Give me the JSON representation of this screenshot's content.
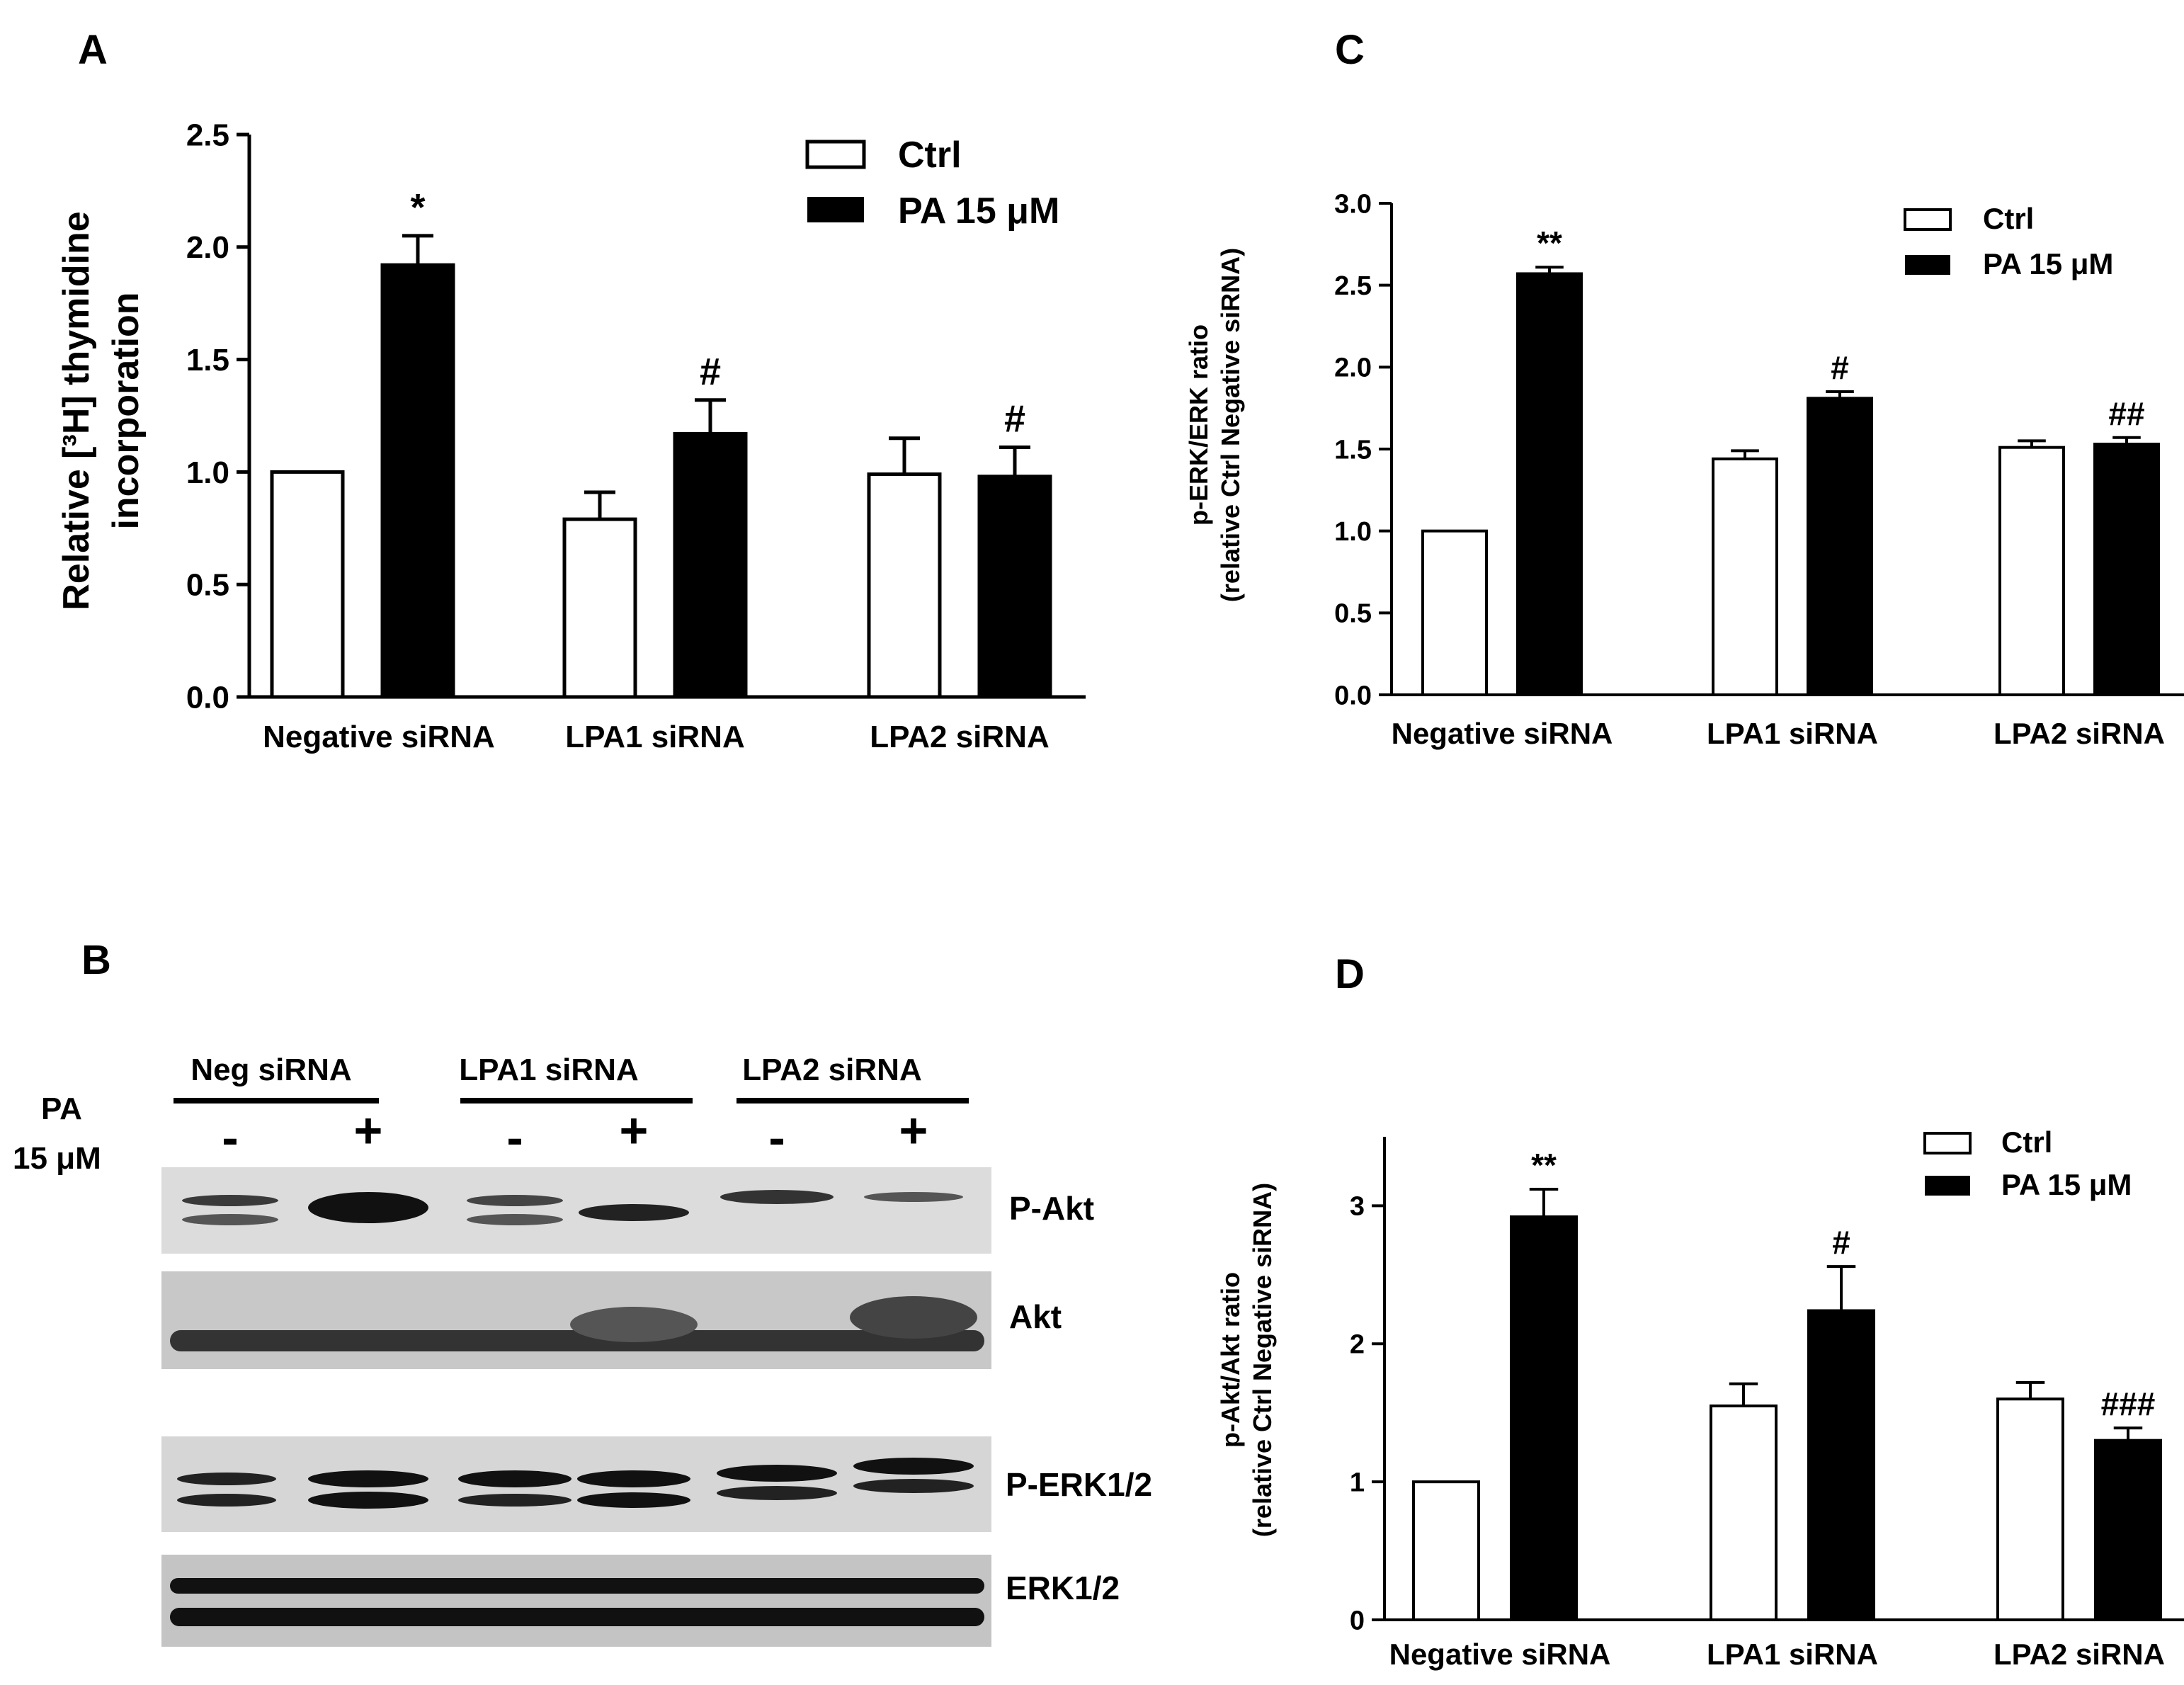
{
  "panels": {
    "A": {
      "letter": "A",
      "ylabel_line1": "Relative [³H] thymidine",
      "ylabel_line2": "incorporation",
      "legend": [
        "Ctrl",
        "PA 15 μM"
      ]
    },
    "B": {
      "letter": "B",
      "pa_label_line1": "PA",
      "pa_label_line2": "15 μM",
      "groups": [
        "Neg siRNA",
        "LPA1 siRNA",
        "LPA2  siRNA"
      ],
      "lane_signs": [
        "-",
        "+",
        "-",
        "+",
        "-",
        "+"
      ],
      "blot_labels": [
        "P-Akt",
        "Akt",
        "P-ERK1/2",
        "ERK1/2"
      ]
    },
    "C": {
      "letter": "C",
      "ylabel_line1": "p-ERK/ERK ratio",
      "ylabel_line2": "(relative Ctrl Negative siRNA)",
      "legend": [
        "Ctrl",
        "PA 15 μM"
      ]
    },
    "D": {
      "letter": "D",
      "ylabel_line1": "p-Akt/Akt ratio",
      "ylabel_line2": "(relative Ctrl Negative siRNA)",
      "legend": [
        "Ctrl",
        "PA 15 μM"
      ]
    }
  },
  "chart_data": [
    {
      "panel": "A",
      "type": "bar",
      "categories": [
        "Negative  siRNA",
        "LPA1 siRNA",
        "LPA2 siRNA"
      ],
      "series": [
        {
          "name": "Ctrl",
          "values": [
            1.0,
            0.79,
            0.99
          ],
          "errors": [
            0,
            0.12,
            0.16
          ],
          "fill": "#ffffff"
        },
        {
          "name": "PA 15 μM",
          "values": [
            1.92,
            1.17,
            0.98
          ],
          "errors": [
            0.13,
            0.15,
            0.13
          ],
          "fill": "#000000"
        }
      ],
      "annotations": [
        "*",
        "#",
        "#"
      ],
      "ylim": [
        0,
        2.5
      ],
      "yticks": [
        "0.0",
        "0.5",
        "1.0",
        "1.5",
        "2.0",
        "2.5"
      ],
      "xlabel": "",
      "ylabel": "Relative [³H] thymidine incorporation",
      "legend_position": "top-right"
    },
    {
      "panel": "C",
      "type": "bar",
      "categories": [
        "Negative siRNA",
        "LPA1 siRNA",
        "LPA2 siRNA"
      ],
      "series": [
        {
          "name": "Ctrl",
          "values": [
            1.0,
            1.44,
            1.51
          ],
          "errors": [
            0,
            0.05,
            0.04
          ],
          "fill": "#ffffff"
        },
        {
          "name": "PA 15 μM",
          "values": [
            2.57,
            1.81,
            1.53
          ],
          "errors": [
            0.04,
            0.04,
            0.04
          ],
          "fill": "#000000"
        }
      ],
      "annotations": [
        "**",
        "#",
        "##"
      ],
      "ylim": [
        0,
        3.0
      ],
      "yticks": [
        "0.0",
        "0.5",
        "1.0",
        "1.5",
        "2.0",
        "2.5",
        "3.0"
      ],
      "xlabel": "",
      "ylabel": "p-ERK/ERK ratio (relative Ctrl Negative siRNA)",
      "legend_position": "top-right"
    },
    {
      "panel": "D",
      "type": "bar",
      "categories": [
        "Negative siRNA",
        "LPA1 siRNA",
        "LPA2 siRNA"
      ],
      "series": [
        {
          "name": "Ctrl",
          "values": [
            1.0,
            1.55,
            1.6
          ],
          "errors": [
            0,
            0.16,
            0.12
          ],
          "fill": "#ffffff"
        },
        {
          "name": "PA 15 μM",
          "values": [
            2.92,
            2.24,
            1.3
          ],
          "errors": [
            0.2,
            0.32,
            0.09
          ],
          "fill": "#000000"
        }
      ],
      "annotations": [
        "**",
        "#",
        "###"
      ],
      "ylim": [
        0,
        3.5
      ],
      "yticks": [
        "0",
        "1",
        "2",
        "3"
      ],
      "xlabel": "",
      "ylabel": "p-Akt/Akt ratio (relative Ctrl Negative siRNA)",
      "legend_position": "top-right"
    }
  ]
}
